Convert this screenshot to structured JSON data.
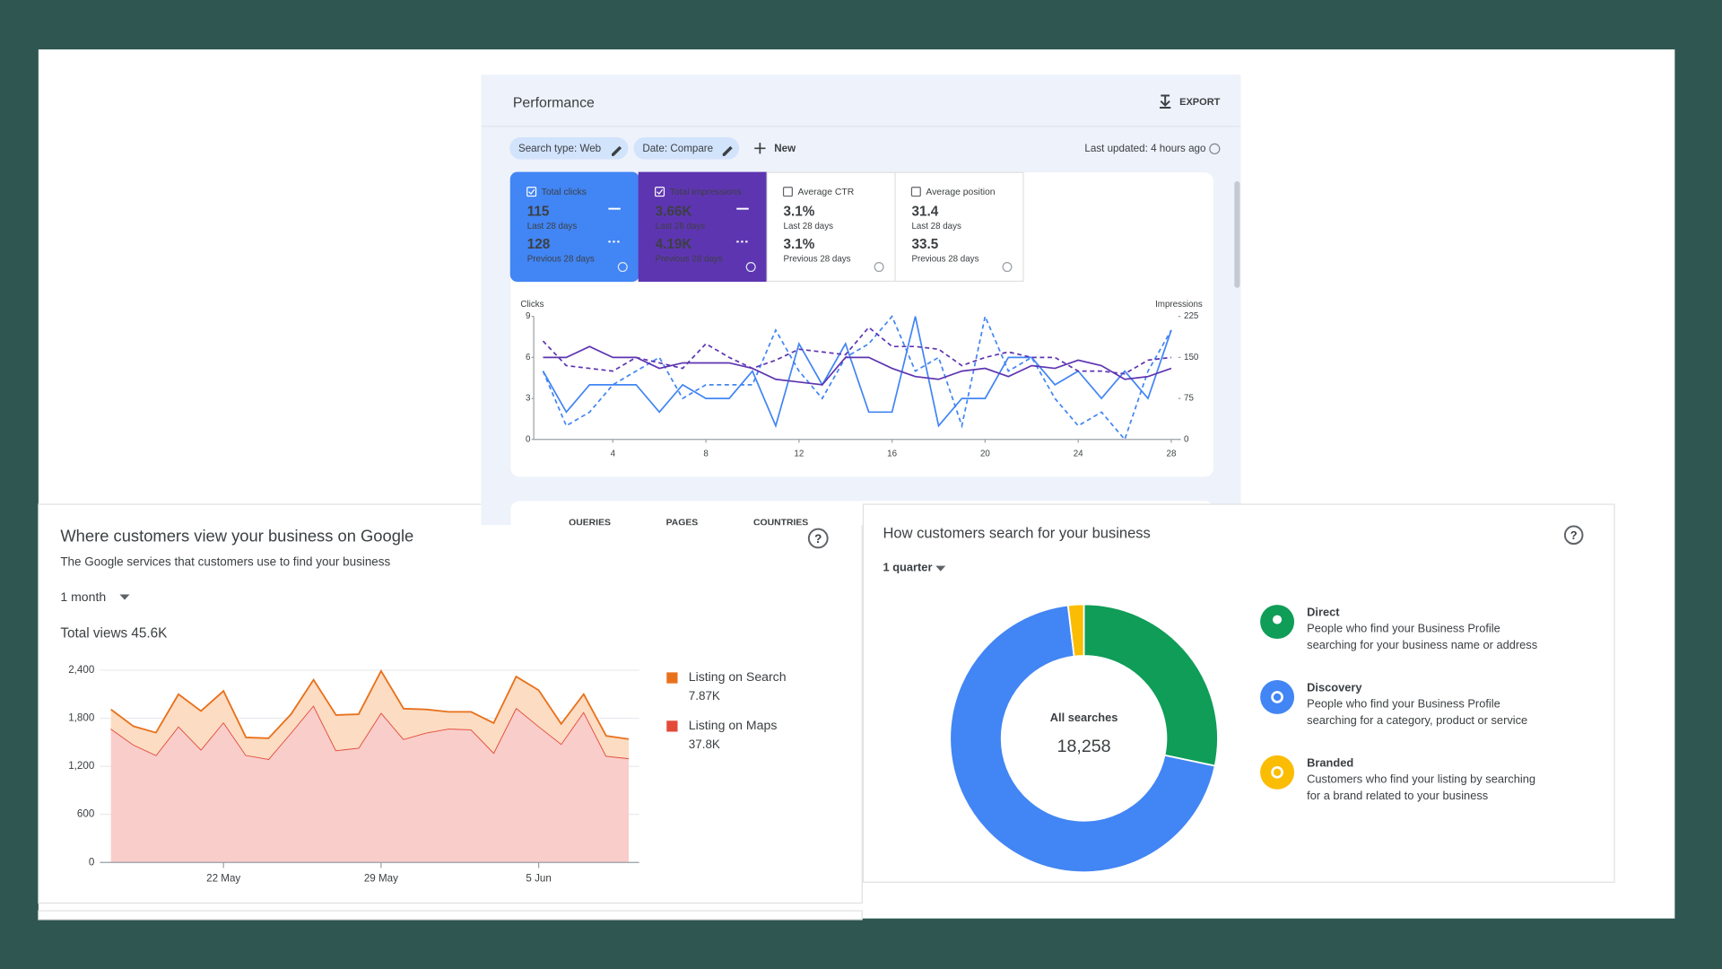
{
  "performance": {
    "title": "Performance",
    "export": "EXPORT",
    "filters": [
      "Search type: Web",
      "Date: Compare"
    ],
    "new": "New",
    "last_updated": "Last updated: 4 hours ago",
    "metrics": [
      {
        "name": "Total clicks",
        "current": "115",
        "current_label": "Last 28 days",
        "previous": "128",
        "previous_label": "Previous 28 days",
        "selected": true,
        "color": "#4285f4"
      },
      {
        "name": "Total impressions",
        "current": "3.66K",
        "current_label": "Last 28 days",
        "previous": "4.19K",
        "previous_label": "Previous 28 days",
        "selected": true,
        "color": "#5e35b1"
      },
      {
        "name": "Average CTR",
        "current": "3.1%",
        "current_label": "Last 28 days",
        "previous": "3.1%",
        "previous_label": "Previous 28 days",
        "selected": false,
        "color": "#ffffff"
      },
      {
        "name": "Average position",
        "current": "31.4",
        "current_label": "Last 28 days",
        "previous": "33.5",
        "previous_label": "Previous 28 days",
        "selected": false,
        "color": "#ffffff"
      }
    ],
    "tabs": [
      "QUERIES",
      "PAGES",
      "COUNTRIES"
    ],
    "chart_data": {
      "type": "line",
      "ylabel": "Clicks",
      "y2label": "Impressions",
      "x": [
        1,
        2,
        3,
        4,
        5,
        6,
        7,
        8,
        9,
        10,
        11,
        12,
        13,
        14,
        15,
        16,
        17,
        18,
        19,
        20,
        21,
        22,
        23,
        24,
        25,
        26,
        27,
        28
      ],
      "xlim": [
        0.6,
        28.4
      ],
      "xticks": [
        4,
        8,
        12,
        16,
        20,
        24,
        28
      ],
      "ylim": [
        0,
        9
      ],
      "yticks": [
        0,
        3,
        6,
        9
      ],
      "y2lim": [
        0,
        225
      ],
      "y2ticks": [
        0,
        75,
        150,
        225
      ],
      "series": [
        {
          "color": "#4285f4",
          "dashed": false,
          "values": [
            5,
            2,
            4,
            4,
            4,
            2,
            4,
            3,
            3,
            5,
            1,
            7,
            4,
            7,
            2,
            2,
            9,
            1,
            3,
            3,
            6,
            6,
            4,
            5,
            3,
            5,
            3,
            8
          ]
        },
        {
          "color": "#4285f4",
          "dashed": true,
          "values": [
            5,
            1,
            2,
            4,
            5,
            6,
            3,
            4,
            4,
            4,
            8,
            5,
            3,
            6,
            7,
            9,
            5,
            6,
            1,
            9,
            5,
            6,
            3,
            1,
            2,
            0,
            5,
            8
          ]
        },
        {
          "color": "#5e35b1",
          "dashed": false,
          "axis": "y2",
          "values": [
            150,
            150,
            170,
            150,
            150,
            130,
            140,
            140,
            140,
            130,
            110,
            105,
            100,
            150,
            150,
            130,
            115,
            110,
            125,
            130,
            115,
            135,
            130,
            145,
            135,
            110,
            115,
            130
          ]
        },
        {
          "color": "#5e35b1",
          "dashed": true,
          "axis": "y2",
          "values": [
            180,
            135,
            130,
            125,
            150,
            140,
            130,
            175,
            150,
            130,
            145,
            165,
            160,
            155,
            205,
            170,
            170,
            165,
            135,
            150,
            160,
            150,
            150,
            125,
            125,
            120,
            145,
            150
          ]
        }
      ]
    }
  },
  "views": {
    "title": "Where customers view your business on Google",
    "subtitle": "The Google services that customers use to find your business",
    "period": "1 month",
    "total": "Total views 45.6K",
    "chart_data": {
      "type": "area",
      "stacked": true,
      "categories": [
        null,
        null,
        null,
        null,
        null,
        "22 May",
        null,
        null,
        null,
        null,
        null,
        null,
        "29 May",
        null,
        null,
        null,
        null,
        null,
        null,
        "5 Jun",
        null,
        null,
        null,
        null
      ],
      "ylim": [
        0,
        2400
      ],
      "yticks": [
        0,
        600,
        {
          "value": 1200,
          "label": "1,200"
        },
        {
          "value": 1800,
          "label": "1,800"
        },
        {
          "value": 2400,
          "label": "2,400"
        }
      ],
      "grid": true,
      "series": [
        {
          "name": "Listing on Maps",
          "total": "37.8K",
          "color": "#e34a3a",
          "fill": "#f9cdca",
          "values": [
            1670,
            1470,
            1340,
            1700,
            1410,
            1750,
            1340,
            1290,
            1620,
            1960,
            1400,
            1430,
            1870,
            1540,
            1620,
            1670,
            1660,
            1370,
            1930,
            1700,
            1480,
            1880,
            1330,
            1300
          ]
        },
        {
          "name": "Listing on Search",
          "total": "7.87K",
          "color": "#e8711c",
          "fill": "#fcdcc2",
          "values": [
            240,
            230,
            280,
            400,
            480,
            390,
            220,
            260,
            230,
            320,
            440,
            420,
            520,
            380,
            290,
            210,
            220,
            370,
            390,
            450,
            250,
            220,
            250,
            240
          ]
        }
      ]
    }
  },
  "searches": {
    "title": "How customers search for your business",
    "period": "1 quarter",
    "chart_data": {
      "type": "donut",
      "center_label": "All searches",
      "center_value": "18,258",
      "categories": [
        "Direct",
        "Discovery",
        "Branded"
      ],
      "descriptions": [
        "People who find your Business Profile searching for your business name or address",
        "People who find your Business Profile searching for a category, product or service",
        "Customers who find your listing by searching for a brand related to your business"
      ],
      "values": [
        28.3,
        69.8,
        1.9
      ],
      "colors": [
        "#0f9d58",
        "#4285f4",
        "#fbbc04"
      ]
    }
  }
}
